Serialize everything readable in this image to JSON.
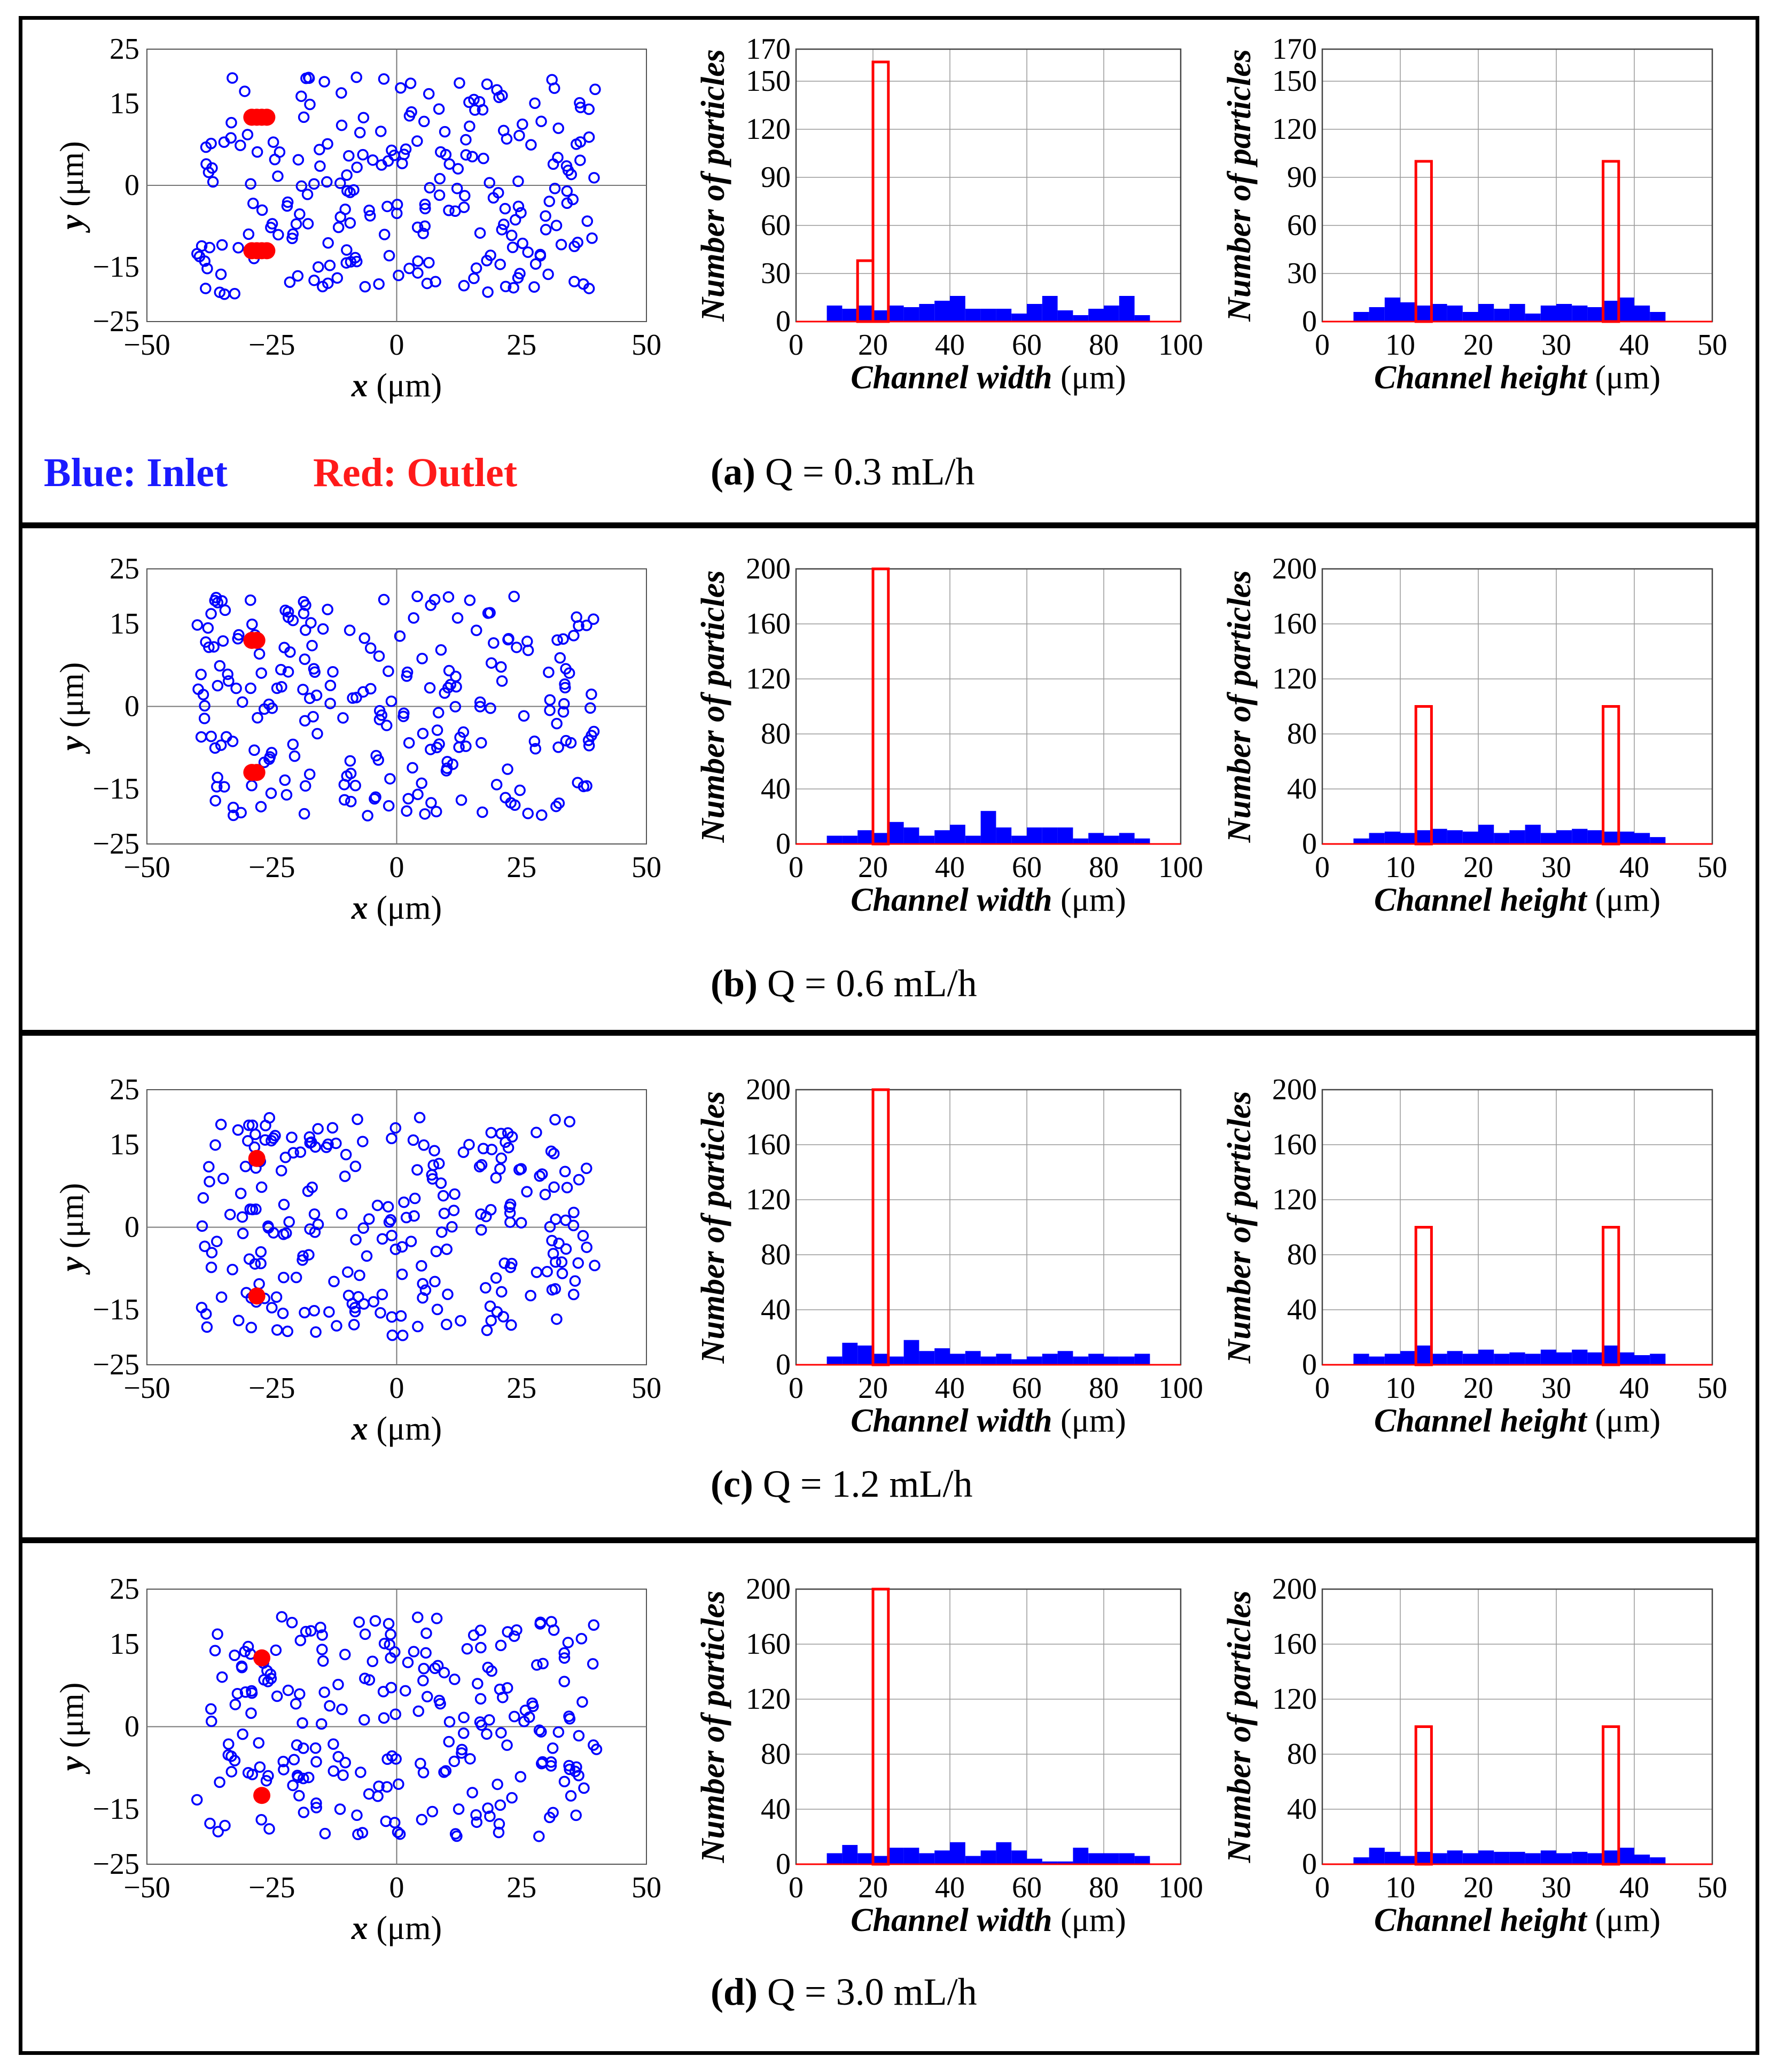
{
  "legend": {
    "blue": "Blue: Inlet",
    "red": "Red: Outlet"
  },
  "colors": {
    "inlet": "#0000ff",
    "outlet": "#ff0000",
    "hist_fill": "#0000ff",
    "hist_edge": "#ff0000",
    "grid": "#999999"
  },
  "panels": [
    {
      "caption_label": "(a)",
      "caption_text": "Q = 0.3 mL/h"
    },
    {
      "caption_label": "(b)",
      "caption_text": "Q = 0.6 mL/h"
    },
    {
      "caption_label": "(c)",
      "caption_text": "Q = 1.2 mL/h"
    },
    {
      "caption_label": "(d)",
      "caption_text": "Q = 3.0 mL/h"
    }
  ],
  "chart_data": [
    {
      "panel": "a",
      "kind": "scatter",
      "type": "scatter",
      "xlabel_var": "x",
      "ylabel_var": "y",
      "unit": "(μm)",
      "xlim": [
        -50,
        50
      ],
      "ylim": [
        -25,
        25
      ],
      "xticks": [
        -50,
        -25,
        0,
        25,
        50
      ],
      "yticks": [
        -25,
        -15,
        0,
        15,
        25
      ],
      "outlet": [
        [
          -29,
          12.5
        ],
        [
          -28,
          12.5
        ],
        [
          -27,
          12.5
        ],
        [
          -26,
          12.5
        ],
        [
          -29,
          -12
        ],
        [
          -28,
          -12
        ],
        [
          -27,
          -12
        ],
        [
          -26,
          -12
        ]
      ],
      "seed": 11,
      "n_inlet": 230
    },
    {
      "panel": "a",
      "kind": "hist",
      "type": "bar",
      "xlabel": "Channel width",
      "unit": "(μm)",
      "ylabel": "Number of particles",
      "xlim": [
        0,
        100
      ],
      "ylim": [
        0,
        170
      ],
      "xticks": [
        0,
        20,
        40,
        60,
        80,
        100
      ],
      "yticks": [
        0,
        30,
        60,
        90,
        120,
        150,
        170
      ],
      "grid": true,
      "inlet_bins": {
        "start": 8,
        "width": 4,
        "values": [
          10,
          8,
          10,
          7,
          10,
          9,
          11,
          13,
          16,
          8,
          8,
          8,
          5,
          11,
          16,
          7,
          4,
          8,
          10,
          16,
          4
        ]
      },
      "outlet_bars": [
        {
          "x0": 16,
          "x1": 20,
          "value": 38
        },
        {
          "x0": 20,
          "x1": 24,
          "value": 162
        }
      ]
    },
    {
      "panel": "a",
      "kind": "hist",
      "type": "bar",
      "xlabel": "Channel height",
      "unit": "(μm)",
      "ylabel": "Number of particles",
      "xlim": [
        0,
        50
      ],
      "ylim": [
        0,
        170
      ],
      "xticks": [
        0,
        10,
        20,
        30,
        40,
        50
      ],
      "yticks": [
        0,
        30,
        60,
        90,
        120,
        150,
        170
      ],
      "grid": true,
      "inlet_bins": {
        "start": 4,
        "width": 2,
        "values": [
          6,
          9,
          15,
          12,
          10,
          11,
          10,
          6,
          11,
          8,
          11,
          5,
          10,
          11,
          10,
          9,
          13,
          15,
          10,
          6
        ]
      },
      "outlet_bars": [
        {
          "x0": 12,
          "x1": 14,
          "value": 100
        },
        {
          "x0": 36,
          "x1": 38,
          "value": 100
        }
      ]
    },
    {
      "panel": "b",
      "kind": "scatter",
      "type": "scatter",
      "xlabel_var": "x",
      "ylabel_var": "y",
      "unit": "(μm)",
      "xlim": [
        -50,
        50
      ],
      "ylim": [
        -25,
        25
      ],
      "xticks": [
        -50,
        -25,
        0,
        25,
        50
      ],
      "yticks": [
        -25,
        -15,
        0,
        15,
        25
      ],
      "outlet": [
        [
          -29,
          12
        ],
        [
          -28,
          12
        ],
        [
          -29,
          -12
        ],
        [
          -28,
          -12
        ]
      ],
      "seed": 22,
      "n_inlet": 230
    },
    {
      "panel": "b",
      "kind": "hist",
      "type": "bar",
      "xlabel": "Channel width",
      "unit": "(μm)",
      "ylabel": "Number of particles",
      "xlim": [
        0,
        100
      ],
      "ylim": [
        0,
        200
      ],
      "xticks": [
        0,
        20,
        40,
        60,
        80,
        100
      ],
      "yticks": [
        0,
        40,
        80,
        120,
        160,
        200
      ],
      "grid": true,
      "inlet_bins": {
        "start": 8,
        "width": 4,
        "values": [
          6,
          6,
          10,
          8,
          16,
          12,
          6,
          10,
          14,
          6,
          24,
          12,
          6,
          12,
          12,
          12,
          4,
          8,
          6,
          8,
          4
        ]
      },
      "outlet_bars": [
        {
          "x0": 20,
          "x1": 24,
          "value": 200
        }
      ]
    },
    {
      "panel": "b",
      "kind": "hist",
      "type": "bar",
      "xlabel": "Channel height",
      "unit": "(μm)",
      "ylabel": "Number of particles",
      "xlim": [
        0,
        50
      ],
      "ylim": [
        0,
        200
      ],
      "xticks": [
        0,
        10,
        20,
        30,
        40,
        50
      ],
      "yticks": [
        0,
        40,
        80,
        120,
        160,
        200
      ],
      "grid": true,
      "inlet_bins": {
        "start": 4,
        "width": 2,
        "values": [
          4,
          8,
          9,
          8,
          10,
          11,
          10,
          9,
          14,
          8,
          10,
          14,
          8,
          10,
          11,
          10,
          9,
          9,
          8,
          5
        ]
      },
      "outlet_bars": [
        {
          "x0": 12,
          "x1": 14,
          "value": 100
        },
        {
          "x0": 36,
          "x1": 38,
          "value": 100
        }
      ]
    },
    {
      "panel": "c",
      "kind": "scatter",
      "type": "scatter",
      "xlabel_var": "x",
      "ylabel_var": "y",
      "unit": "(μm)",
      "xlim": [
        -50,
        50
      ],
      "ylim": [
        -25,
        25
      ],
      "xticks": [
        -50,
        -25,
        0,
        25,
        50
      ],
      "yticks": [
        -25,
        -15,
        0,
        15,
        25
      ],
      "outlet": [
        [
          -28,
          12.5
        ],
        [
          -28,
          -12.5
        ]
      ],
      "seed": 33,
      "n_inlet": 240
    },
    {
      "panel": "c",
      "kind": "hist",
      "type": "bar",
      "xlabel": "Channel width",
      "unit": "(μm)",
      "ylabel": "Number of particles",
      "xlim": [
        0,
        100
      ],
      "ylim": [
        0,
        200
      ],
      "xticks": [
        0,
        20,
        40,
        60,
        80,
        100
      ],
      "yticks": [
        0,
        40,
        80,
        120,
        160,
        200
      ],
      "grid": true,
      "inlet_bins": {
        "start": 8,
        "width": 4,
        "values": [
          6,
          16,
          14,
          8,
          6,
          18,
          10,
          12,
          8,
          10,
          6,
          8,
          4,
          6,
          8,
          10,
          6,
          8,
          6,
          6,
          8
        ]
      },
      "outlet_bars": [
        {
          "x0": 20,
          "x1": 24,
          "value": 200
        }
      ]
    },
    {
      "panel": "c",
      "kind": "hist",
      "type": "bar",
      "xlabel": "Channel height",
      "unit": "(μm)",
      "ylabel": "Number of particles",
      "xlim": [
        0,
        50
      ],
      "ylim": [
        0,
        200
      ],
      "xticks": [
        0,
        10,
        20,
        30,
        40,
        50
      ],
      "yticks": [
        0,
        40,
        80,
        120,
        160,
        200
      ],
      "grid": true,
      "inlet_bins": {
        "start": 4,
        "width": 2,
        "values": [
          8,
          6,
          8,
          10,
          14,
          8,
          10,
          8,
          11,
          8,
          9,
          8,
          11,
          9,
          11,
          9,
          14,
          9,
          7,
          8
        ]
      },
      "outlet_bars": [
        {
          "x0": 12,
          "x1": 14,
          "value": 100
        },
        {
          "x0": 36,
          "x1": 38,
          "value": 100
        }
      ]
    },
    {
      "panel": "d",
      "kind": "scatter",
      "type": "scatter",
      "xlabel_var": "x",
      "ylabel_var": "y",
      "unit": "(μm)",
      "xlim": [
        -50,
        50
      ],
      "ylim": [
        -25,
        25
      ],
      "xticks": [
        -50,
        -25,
        0,
        25,
        50
      ],
      "yticks": [
        -25,
        -15,
        0,
        15,
        25
      ],
      "outlet": [
        [
          -27,
          12.5
        ],
        [
          -27,
          -12.5
        ]
      ],
      "seed": 44,
      "n_inlet": 230
    },
    {
      "panel": "d",
      "kind": "hist",
      "type": "bar",
      "xlabel": "Channel width",
      "unit": "(μm)",
      "ylabel": "Number of particles",
      "xlim": [
        0,
        100
      ],
      "ylim": [
        0,
        200
      ],
      "xticks": [
        0,
        20,
        40,
        60,
        80,
        100
      ],
      "yticks": [
        0,
        40,
        80,
        120,
        160,
        200
      ],
      "grid": true,
      "inlet_bins": {
        "start": 8,
        "width": 4,
        "values": [
          8,
          14,
          8,
          6,
          12,
          12,
          8,
          10,
          16,
          6,
          10,
          16,
          10,
          4,
          2,
          2,
          12,
          8,
          8,
          8,
          6
        ]
      },
      "outlet_bars": [
        {
          "x0": 20,
          "x1": 24,
          "value": 200
        }
      ]
    },
    {
      "panel": "d",
      "kind": "hist",
      "type": "bar",
      "xlabel": "Channel height",
      "unit": "(μm)",
      "ylabel": "Number of particles",
      "xlim": [
        0,
        50
      ],
      "ylim": [
        0,
        200
      ],
      "xticks": [
        0,
        10,
        20,
        30,
        40,
        50
      ],
      "yticks": [
        0,
        40,
        80,
        120,
        160,
        200
      ],
      "grid": true,
      "inlet_bins": {
        "start": 4,
        "width": 2,
        "values": [
          5,
          12,
          9,
          6,
          9,
          8,
          10,
          8,
          10,
          9,
          9,
          8,
          10,
          8,
          9,
          8,
          10,
          12,
          7,
          5
        ]
      },
      "outlet_bars": [
        {
          "x0": 12,
          "x1": 14,
          "value": 100
        },
        {
          "x0": 36,
          "x1": 38,
          "value": 100
        }
      ]
    }
  ]
}
